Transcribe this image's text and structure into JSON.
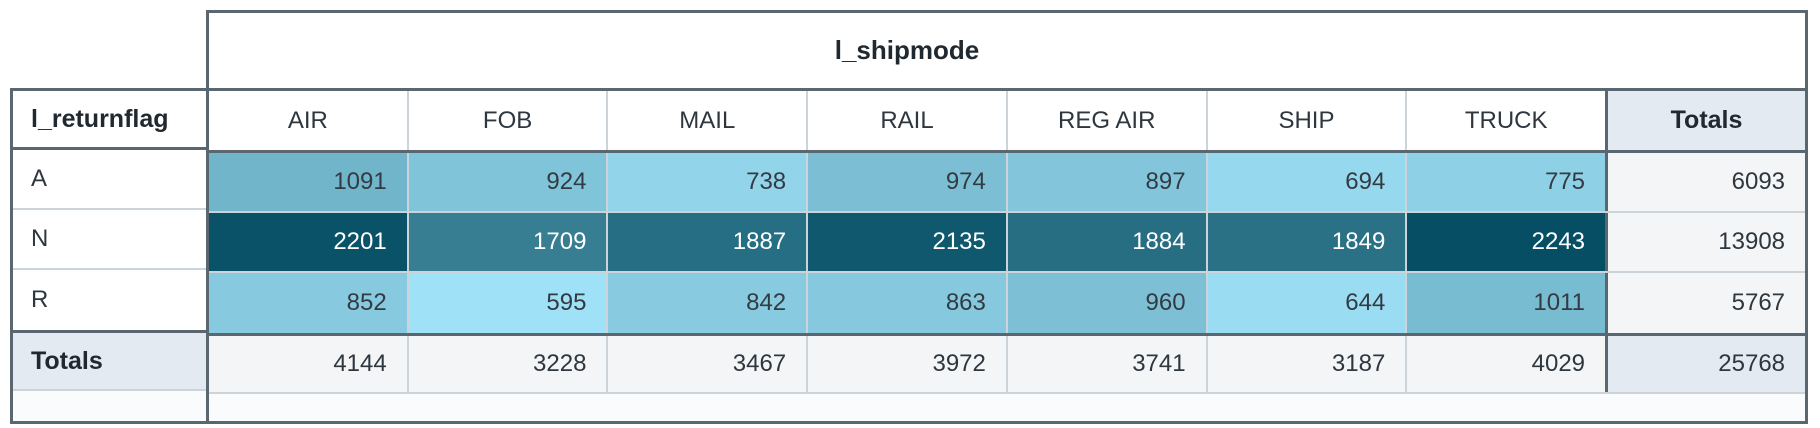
{
  "chart_data": {
    "type": "heatmap",
    "col_dimension": "l_shipmode",
    "row_dimension": "l_returnflag",
    "totals_label": "Totals",
    "columns": [
      "AIR",
      "FOB",
      "MAIL",
      "RAIL",
      "REG AIR",
      "SHIP",
      "TRUCK"
    ],
    "rows": [
      {
        "label": "A",
        "values": [
          1091,
          924,
          738,
          974,
          897,
          694,
          775
        ],
        "total": 6093
      },
      {
        "label": "N",
        "values": [
          2201,
          1709,
          1887,
          2135,
          1884,
          1849,
          2243
        ],
        "total": 13908
      },
      {
        "label": "R",
        "values": [
          852,
          595,
          842,
          863,
          960,
          644,
          1011
        ],
        "total": 5767
      }
    ],
    "column_totals": [
      4144,
      3228,
      3467,
      3972,
      3741,
      3187,
      4029
    ],
    "grand_total": 25768,
    "heatmap_scale": {
      "min_value": 595,
      "max_value": 2243,
      "min_color": "#9fe1f7",
      "max_color": "#054e63",
      "dark_text": "#333b42",
      "light_text": "#ffffff",
      "light_text_threshold": 0.55
    }
  },
  "colors": {
    "frame_border": "#5a6771",
    "grid_border_light": "#ccd4da",
    "totals_header_bg": "#e4eaf1",
    "totals_cell_bg": "#f3f5f7",
    "strip_bg": "#fafbfc",
    "header_text": "#212930",
    "body_text": "#2e363e"
  }
}
